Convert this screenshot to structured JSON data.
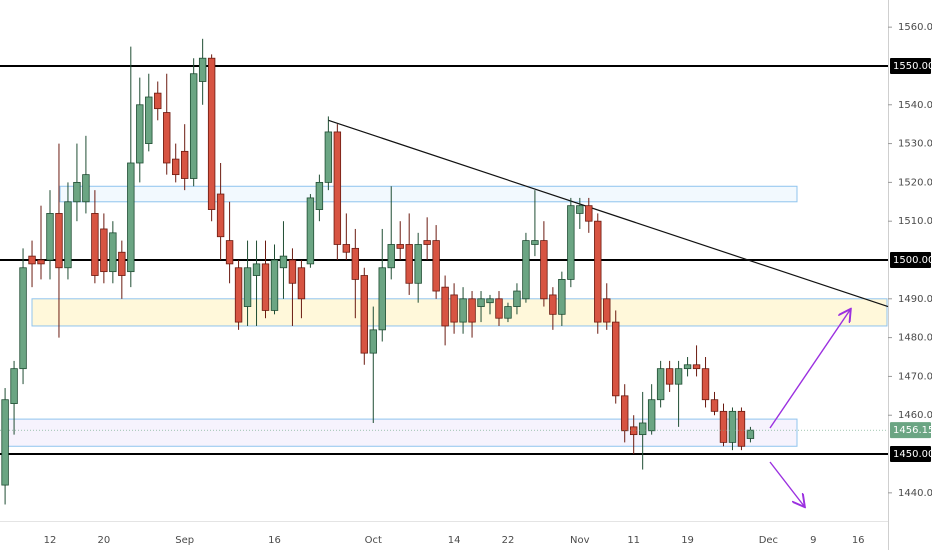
{
  "chart_data": {
    "type": "candlestick",
    "categories": [
      null,
      null,
      null,
      null,
      null,
      "12",
      null,
      null,
      null,
      null,
      null,
      "20",
      null,
      null,
      null,
      null,
      null,
      null,
      null,
      null,
      "Sep",
      null,
      null,
      null,
      null,
      null,
      null,
      null,
      null,
      null,
      "16",
      null,
      null,
      null,
      null,
      null,
      null,
      null,
      null,
      null,
      null,
      "Oct",
      null,
      null,
      null,
      null,
      null,
      null,
      null,
      null,
      "14",
      null,
      null,
      null,
      null,
      null,
      "22",
      null,
      null,
      null,
      null,
      null,
      null,
      null,
      "Nov",
      null,
      null,
      null,
      null,
      null,
      "11",
      null,
      null,
      null,
      null,
      null,
      "19",
      null,
      null,
      null,
      null,
      null,
      null,
      null,
      null,
      "Dec",
      null,
      null,
      null,
      null,
      "9",
      null,
      null,
      null,
      null,
      "16",
      null,
      null,
      null
    ],
    "open": [
      1442,
      1463,
      1472,
      1501,
      1500,
      1500,
      1512,
      1498,
      1515,
      1515,
      1512,
      1508,
      1497,
      1502,
      1497,
      1525,
      1530,
      1543,
      1538,
      1526,
      1528,
      1521,
      1546,
      1552,
      1517,
      1505,
      1498,
      1488,
      1496,
      1499,
      1487,
      1498,
      1500,
      1498,
      1499,
      1513,
      1520,
      1533,
      1504,
      1503,
      1496,
      1476,
      1482,
      1498,
      1504,
      1504,
      1494,
      1505,
      1505,
      1493,
      1491,
      1484,
      1490,
      1488,
      1489,
      1490,
      1485,
      1488,
      1490,
      1504,
      1505,
      1491,
      1486,
      1495,
      1512,
      1514,
      1510,
      1490,
      1484,
      1465,
      1457,
      1455,
      1456,
      1464,
      1472,
      1468,
      1472,
      1473,
      1472,
      1464,
      1461,
      1453,
      1461,
      1454,
      null,
      null,
      null,
      null,
      null,
      null,
      null,
      null,
      null,
      null,
      null,
      null,
      null,
      null,
      null
    ],
    "high": [
      1467,
      1474,
      1503,
      1505,
      1514,
      1518,
      1530,
      1520,
      1530,
      1532,
      1518,
      1512,
      1510,
      1505,
      1555,
      1547,
      1548,
      1546,
      1548,
      1530,
      1535,
      1552,
      1557,
      1553,
      1525,
      1515,
      1500,
      1505,
      1505,
      1505,
      1504,
      1510,
      1503,
      1500,
      1517,
      1522,
      1537,
      1535,
      1512,
      1508,
      1498,
      1488,
      1508,
      1519,
      1510,
      1512,
      1507,
      1511,
      1509,
      1496,
      1494,
      1493,
      1492,
      1492,
      1491,
      1492,
      1489,
      1494,
      1507,
      1518,
      1510,
      1493,
      1497,
      1516,
      1516,
      1516,
      1512,
      1494,
      1487,
      1468,
      1460,
      1466,
      1468,
      1474,
      1474,
      1474,
      1475,
      1478,
      1475,
      1466,
      1463,
      1462,
      1462,
      1457,
      null,
      null,
      null,
      null,
      null,
      null,
      null,
      null,
      null,
      null,
      null,
      null,
      null,
      null,
      null
    ],
    "low": [
      1437,
      1455,
      1468,
      1493,
      1495,
      1495,
      1480,
      1495,
      1510,
      1512,
      1494,
      1494,
      1494,
      1490,
      1493,
      1520,
      1528,
      1536,
      1522,
      1520,
      1518,
      1519,
      1540,
      1510,
      1500,
      1494,
      1482,
      1483,
      1483,
      1485,
      1486,
      1490,
      1483,
      1485,
      1498,
      1510,
      1518,
      1500,
      1500,
      1485,
      1473,
      1458,
      1479,
      1495,
      1500,
      1491,
      1489,
      1500,
      1490,
      1478,
      1481,
      1481,
      1480,
      1484,
      1486,
      1483,
      1484,
      1486,
      1489,
      1501,
      1488,
      1482,
      1483,
      1493,
      1508,
      1507,
      1481,
      1482,
      1463,
      1453,
      1450,
      1446,
      1455,
      1462,
      1466,
      1457,
      1470,
      1470,
      1462,
      1460,
      1452,
      1451,
      1451,
      1453,
      null,
      null,
      null,
      null,
      null,
      null,
      null,
      null,
      null,
      null,
      null,
      null,
      null,
      null,
      null
    ],
    "close": [
      1464,
      1472,
      1498,
      1499,
      1499,
      1512,
      1498,
      1515,
      1520,
      1522,
      1496,
      1497,
      1507,
      1496,
      1525,
      1540,
      1542,
      1539,
      1525,
      1522,
      1521,
      1548,
      1552,
      1513,
      1506,
      1499,
      1484,
      1498,
      1499,
      1487,
      1500,
      1501,
      1494,
      1490,
      1516,
      1520,
      1533,
      1504,
      1502,
      1495,
      1476,
      1482,
      1498,
      1504,
      1503,
      1494,
      1504,
      1504,
      1492,
      1483,
      1484,
      1490,
      1484,
      1490,
      1490,
      1485,
      1488,
      1492,
      1505,
      1505,
      1490,
      1486,
      1495,
      1514,
      1514,
      1510,
      1484,
      1484,
      1465,
      1456,
      1455,
      1458,
      1464,
      1472,
      1468,
      1472,
      1473,
      1472,
      1464,
      1461,
      1453,
      1461,
      1452,
      1456.15,
      null,
      null,
      null,
      null,
      null,
      null,
      null,
      null,
      null,
      null,
      null,
      null,
      null,
      null,
      null
    ],
    "up_color": "#6ba583",
    "down_color": "#d75442",
    "ylim": [
      1433,
      1567
    ],
    "yticks": [
      {
        "value": 1440,
        "label": "1440.00"
      },
      {
        "value": 1460,
        "label": "1460.00"
      },
      {
        "value": 1470,
        "label": "1470.00"
      },
      {
        "value": 1480,
        "label": "1480.00"
      },
      {
        "value": 1490,
        "label": "1490.00"
      },
      {
        "value": 1510,
        "label": "1510.00"
      },
      {
        "value": 1520,
        "label": "1520.00"
      },
      {
        "value": 1530,
        "label": "1530.00"
      },
      {
        "value": 1540,
        "label": "1540.00"
      },
      {
        "value": 1560,
        "label": "1560.00"
      }
    ],
    "hlines": [
      {
        "value": 1550,
        "label": "1550.00"
      },
      {
        "value": 1500,
        "label": "1500.00"
      },
      {
        "value": 1450,
        "label": "1450.00"
      }
    ],
    "zones": [
      [
        1515,
        1519
      ],
      [
        1483,
        1490
      ],
      [
        1452,
        1459
      ]
    ],
    "trendline": [
      1536,
      1488
    ]
  }
}
